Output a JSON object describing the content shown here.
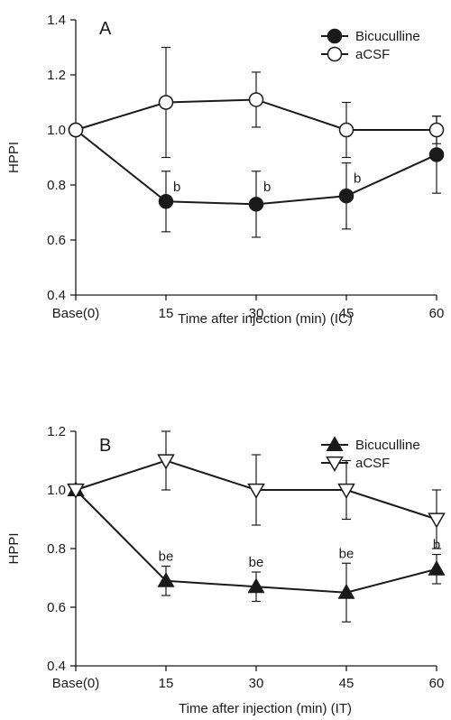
{
  "chart_data": [
    {
      "panel": "A",
      "type": "line",
      "x_categories": [
        "Base(0)",
        "15",
        "30",
        "45",
        "60"
      ],
      "xlabel": "Time after injection (min) (IC)",
      "ylabel": "HPPI",
      "ylim": [
        0.4,
        1.4
      ],
      "yticks": [
        "0.4",
        "0.6",
        "0.8",
        "1.0",
        "1.2",
        "1.4"
      ],
      "ytick_values": [
        0.4,
        0.6,
        0.8,
        1.0,
        1.2,
        1.4
      ],
      "grid": false,
      "legend_position": "top-right",
      "series": [
        {
          "name": "Bicuculline",
          "marker": "filled-circle",
          "values": [
            1.0,
            0.74,
            0.73,
            0.76,
            0.91
          ],
          "errors": [
            0,
            0.11,
            0.12,
            0.12,
            0.14
          ],
          "annotations": [
            "",
            "b",
            "b",
            "b",
            ""
          ]
        },
        {
          "name": "aCSF",
          "marker": "open-circle",
          "values": [
            1.0,
            1.1,
            1.11,
            1.0,
            1.0
          ],
          "errors": [
            0,
            0.2,
            0.1,
            0.1,
            0.05
          ],
          "annotations": [
            "",
            "",
            "",
            "",
            ""
          ]
        }
      ]
    },
    {
      "panel": "B",
      "type": "line",
      "x_categories": [
        "Base(0)",
        "15",
        "30",
        "45",
        "60"
      ],
      "xlabel": "Time after injection (min) (IT)",
      "ylabel": "HPPI",
      "ylim": [
        0.4,
        1.2
      ],
      "yticks": [
        "0.4",
        "0.6",
        "0.8",
        "1.0",
        "1.2"
      ],
      "ytick_values": [
        0.4,
        0.6,
        0.8,
        1.0,
        1.2
      ],
      "grid": false,
      "legend_position": "top-right",
      "series": [
        {
          "name": "Bicuculline",
          "marker": "filled-triangle-up",
          "values": [
            1.0,
            0.69,
            0.67,
            0.65,
            0.73
          ],
          "errors": [
            0,
            0.05,
            0.05,
            0.1,
            0.05
          ],
          "annotations": [
            "",
            "be",
            "be",
            "be",
            "b"
          ]
        },
        {
          "name": "aCSF",
          "marker": "open-triangle-down",
          "values": [
            1.0,
            1.1,
            1.0,
            1.0,
            0.9
          ],
          "errors": [
            0,
            0.1,
            0.12,
            0.1,
            0.1
          ],
          "annotations": [
            "",
            "",
            "",
            "",
            ""
          ]
        }
      ]
    }
  ],
  "colors": {
    "ink": "#1a1a1a",
    "background": "#ffffff"
  }
}
